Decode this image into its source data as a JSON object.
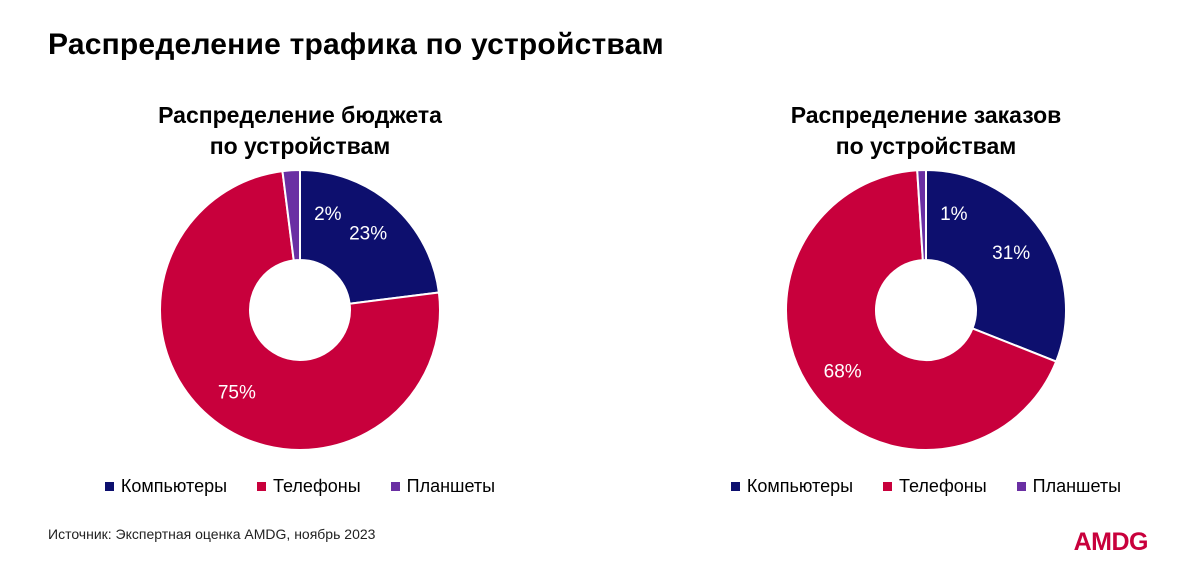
{
  "page": {
    "title": "Распределение трафика по устройствам",
    "source": "Источник: Экспертная оценка AMDG, ноябрь 2023",
    "logo": "AMDG"
  },
  "colors": {
    "computers": "#0d0f6e",
    "phones": "#c8003c",
    "tablets": "#6a2fa3"
  },
  "chart_data": [
    {
      "type": "pie",
      "title_lines": [
        "Распределение бюджета",
        "по устройствам"
      ],
      "categories": [
        "Компьютеры",
        "Телефоны",
        "Планшеты"
      ],
      "values": [
        23,
        75,
        2
      ],
      "labels": [
        "23%",
        "75%",
        "2%"
      ],
      "colors": [
        "#0d0f6e",
        "#c8003c",
        "#6a2fa3"
      ],
      "legend": "bottom"
    },
    {
      "type": "pie",
      "title_lines": [
        "Распределение заказов",
        "по устройствам"
      ],
      "categories": [
        "Компьютеры",
        "Телефоны",
        "Планшеты"
      ],
      "values": [
        31,
        68,
        1
      ],
      "labels": [
        "31%",
        "68%",
        "1%"
      ],
      "colors": [
        "#0d0f6e",
        "#c8003c",
        "#6a2fa3"
      ],
      "legend": "bottom"
    }
  ]
}
